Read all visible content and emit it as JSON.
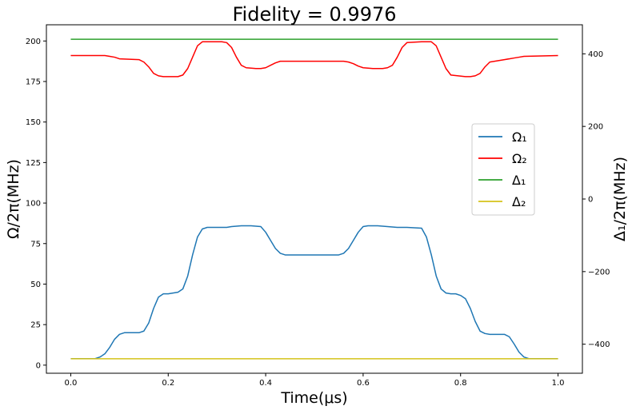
{
  "chart_data": {
    "type": "line",
    "title": "Fidelity = 0.9976",
    "xlabel": "Time(μs)",
    "ylabel_left": "Ω/2π(MHz)",
    "ylabel_right": "Δ₁/2π(MHz)",
    "xlim": [
      -0.05,
      1.05
    ],
    "ylim_left": [
      -5,
      210
    ],
    "ylim_right": [
      -480,
      480
    ],
    "x_ticks": [
      0.0,
      0.2,
      0.4,
      0.6,
      0.8,
      1.0
    ],
    "x_tick_labels": [
      "0.0",
      "0.2",
      "0.4",
      "0.6",
      "0.8",
      "1.0"
    ],
    "y_left_ticks": [
      0,
      25,
      50,
      75,
      100,
      125,
      150,
      175,
      200
    ],
    "y_left_tick_labels": [
      "0",
      "25",
      "50",
      "75",
      "100",
      "125",
      "150",
      "175",
      "200"
    ],
    "y_right_ticks": [
      -400,
      -200,
      0,
      200,
      400
    ],
    "y_right_tick_labels": [
      "−400",
      "−200",
      "0",
      "200",
      "400"
    ],
    "grid": false,
    "legend_position": "center-right",
    "series": [
      {
        "name": "Ω₁",
        "axis": "left",
        "color": "#1f77b4",
        "x": [
          0.0,
          0.05,
          0.06,
          0.07,
          0.08,
          0.09,
          0.1,
          0.11,
          0.14,
          0.15,
          0.16,
          0.17,
          0.18,
          0.19,
          0.2,
          0.22,
          0.23,
          0.24,
          0.25,
          0.26,
          0.27,
          0.28,
          0.32,
          0.33,
          0.35,
          0.37,
          0.39,
          0.4,
          0.41,
          0.42,
          0.43,
          0.44,
          0.45,
          0.55,
          0.56,
          0.57,
          0.58,
          0.59,
          0.6,
          0.61,
          0.62,
          0.63,
          0.65,
          0.67,
          0.69,
          0.72,
          0.73,
          0.74,
          0.75,
          0.76,
          0.77,
          0.78,
          0.79,
          0.8,
          0.81,
          0.82,
          0.83,
          0.84,
          0.85,
          0.86,
          0.89,
          0.9,
          0.91,
          0.92,
          0.93,
          0.94,
          0.95,
          1.0
        ],
        "values": [
          4,
          4,
          5,
          7,
          11,
          16,
          19,
          20,
          20,
          21,
          26,
          35,
          42,
          44,
          44,
          45,
          47,
          55,
          68,
          79,
          84,
          85,
          85,
          85.5,
          86,
          86,
          85.5,
          82,
          77,
          72,
          69,
          68,
          68,
          68,
          69,
          72,
          77,
          82,
          85.5,
          86,
          86,
          86,
          85.5,
          85,
          85,
          84.5,
          79,
          68,
          55,
          47,
          44.5,
          44,
          44,
          43,
          41,
          35,
          27,
          21,
          19.5,
          19,
          19,
          17.5,
          13,
          8,
          5,
          4,
          4,
          4
        ]
      },
      {
        "name": "Ω₂",
        "axis": "left",
        "color": "#ff0000",
        "x": [
          0.0,
          0.07,
          0.08,
          0.09,
          0.1,
          0.14,
          0.15,
          0.16,
          0.17,
          0.18,
          0.19,
          0.22,
          0.23,
          0.24,
          0.25,
          0.26,
          0.27,
          0.28,
          0.31,
          0.32,
          0.33,
          0.34,
          0.35,
          0.36,
          0.38,
          0.39,
          0.4,
          0.41,
          0.42,
          0.43,
          0.56,
          0.57,
          0.58,
          0.59,
          0.6,
          0.62,
          0.64,
          0.65,
          0.66,
          0.67,
          0.68,
          0.69,
          0.72,
          0.73,
          0.74,
          0.75,
          0.76,
          0.77,
          0.78,
          0.81,
          0.82,
          0.83,
          0.84,
          0.85,
          0.86,
          0.89,
          0.9,
          0.91,
          0.92,
          0.93,
          1.0
        ],
        "values": [
          191,
          191,
          190.5,
          190,
          189,
          188.5,
          187,
          184,
          180,
          178.5,
          178,
          178,
          179,
          183,
          190,
          197,
          199.5,
          199.5,
          199.5,
          199,
          196,
          190,
          185,
          183.5,
          183,
          183,
          183.5,
          185,
          186.5,
          187.5,
          187.5,
          187,
          186,
          184.5,
          183.5,
          183,
          183,
          183.5,
          185,
          190,
          196,
          199,
          199.5,
          199.5,
          199.5,
          197,
          190,
          183,
          179,
          178,
          178,
          178.5,
          180,
          184,
          187,
          188.5,
          189,
          189.5,
          190,
          190.5,
          191
        ]
      },
      {
        "name": "Δ₁",
        "axis": "right",
        "color": "#2ca02c",
        "x": [
          0.0,
          1.0
        ],
        "values": [
          440,
          440
        ]
      },
      {
        "name": "Δ₂",
        "axis": "right",
        "color": "#d4c31a",
        "x": [
          0.0,
          1.0
        ],
        "values": [
          -440,
          -440
        ]
      }
    ]
  }
}
